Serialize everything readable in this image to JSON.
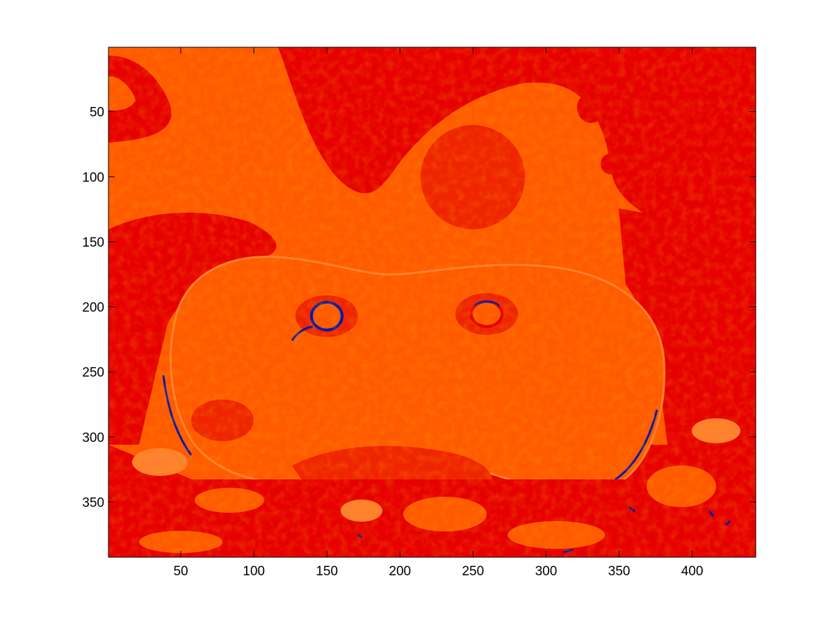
{
  "chart_data": {
    "type": "heatmap",
    "title": "",
    "xlabel": "",
    "ylabel": "",
    "x_range": [
      0.5,
      443.5
    ],
    "y_range": [
      0.5,
      392.5
    ],
    "y_direction": "reversed",
    "x_ticks": [
      "50",
      "100",
      "150",
      "200",
      "250",
      "300",
      "350",
      "400"
    ],
    "y_ticks": [
      "50",
      "100",
      "150",
      "200",
      "250",
      "300",
      "350"
    ],
    "colormap": [
      "#0018a8",
      "#e00000",
      "#ff5a00",
      "#ff8030"
    ],
    "background_color": "#e60000",
    "image_content": "thresholded false-color image of two rounded lobes with ring-shaped features near (150,205) and (255,205), mostly orange-red with scattered blue pixels along edges",
    "grid": false,
    "legend": "none"
  }
}
